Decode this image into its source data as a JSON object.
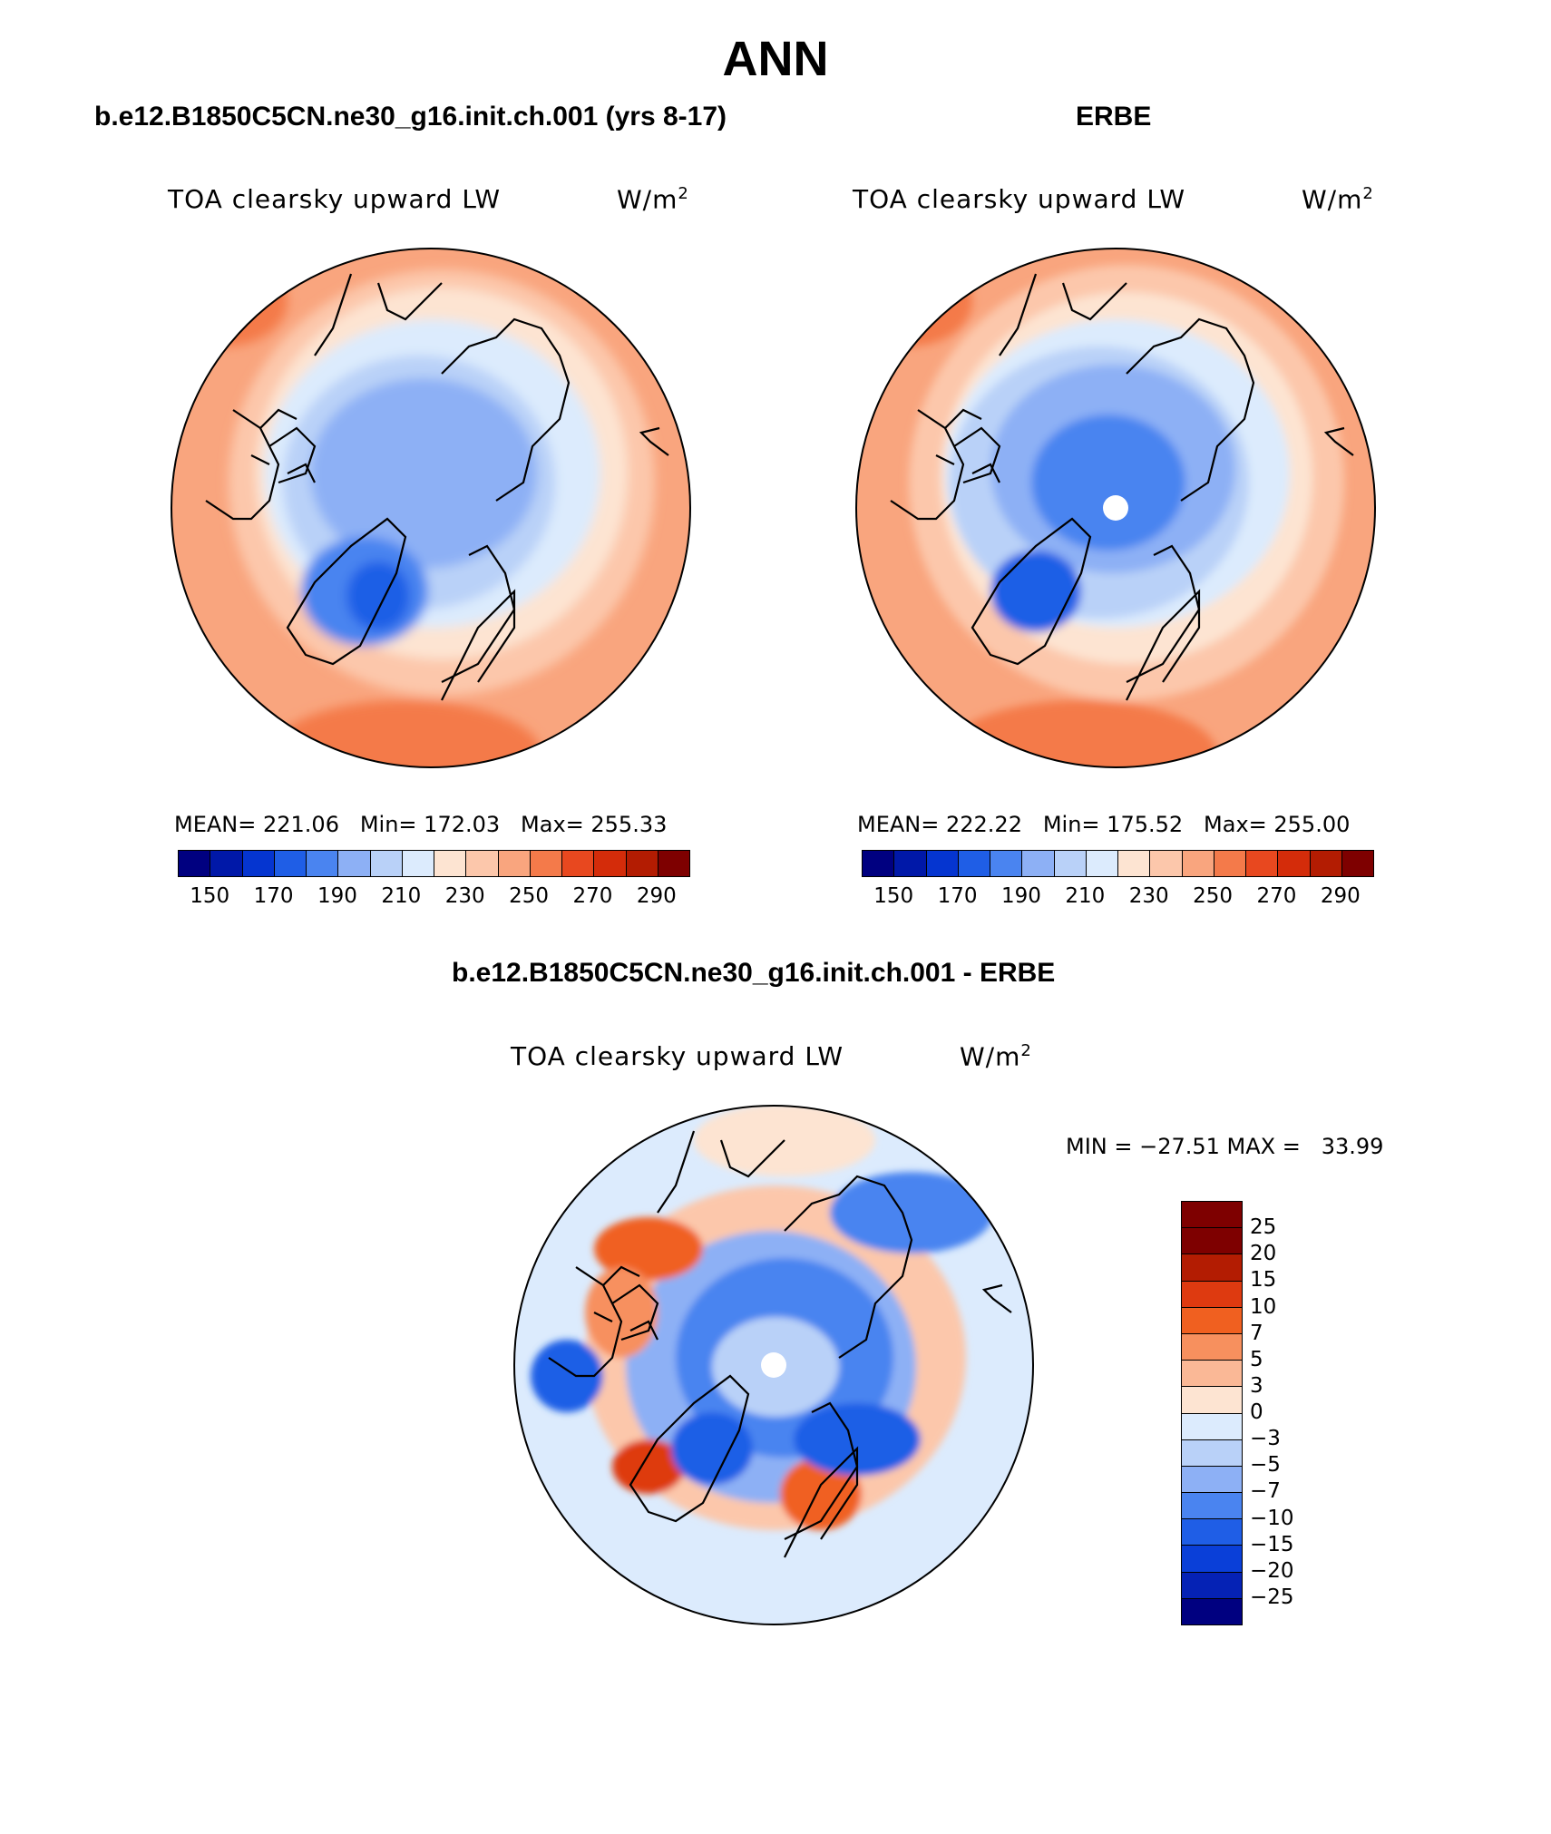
{
  "title": "ANN",
  "panels": [
    {
      "header": "b.e12.B1850C5CN.ne30_g16.init.ch.001 (yrs 8-17)",
      "variable": "TOA clearsky upward LW",
      "units": "W/m",
      "units_exp": "2",
      "stats": "MEAN= 221.06   Min= 172.03   Max= 255.33",
      "mean": 221.06,
      "min": 172.03,
      "max": 255.33
    },
    {
      "header": "ERBE",
      "variable": "TOA clearsky upward LW",
      "units": "W/m",
      "units_exp": "2",
      "stats": "MEAN= 222.22   Min= 175.52   Max= 255.00",
      "mean": 222.22,
      "min": 175.52,
      "max": 255.0
    }
  ],
  "diff": {
    "header": "b.e12.B1850C5CN.ne30_g16.init.ch.001 - ERBE",
    "variable": "TOA clearsky upward LW",
    "units": "W/m",
    "units_exp": "2",
    "minmax": "MIN = −27.51 MAX =   33.99",
    "min": -27.51,
    "max": 33.99
  },
  "colorbar_top": {
    "colors": [
      "#000080",
      "#0018a8",
      "#0535d0",
      "#1f5ee6",
      "#4a84f0",
      "#8db0f5",
      "#b9d1f8",
      "#dcebfd",
      "#fde4d2",
      "#fcc7ab",
      "#f9a57e",
      "#f47a4a",
      "#e8481f",
      "#d42c0a",
      "#b31c02",
      "#7e0000"
    ],
    "labels": [
      "150",
      "170",
      "190",
      "210",
      "230",
      "250",
      "270",
      "290"
    ]
  },
  "colorbar_diff": {
    "colors": [
      "#7e0000",
      "#b31c02",
      "#de3a10",
      "#f06020",
      "#f7905e",
      "#fab896",
      "#fde4d2",
      "#dcebfd",
      "#b9d1f8",
      "#8db0f5",
      "#4a84f0",
      "#1f5ee6",
      "#0a3fd8",
      "#0522b5",
      "#000080"
    ],
    "labels": [
      "25",
      "20",
      "15",
      "10",
      "7",
      "5",
      "3",
      "0",
      "−3",
      "−5",
      "−7",
      "−10",
      "−15",
      "−20",
      "−25"
    ]
  }
}
